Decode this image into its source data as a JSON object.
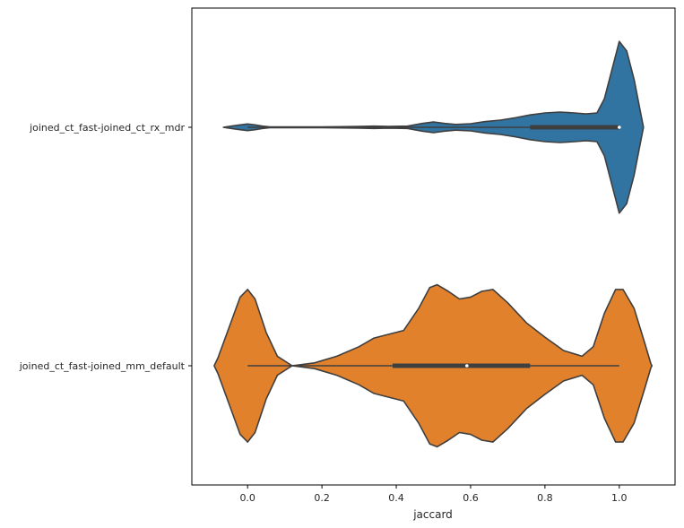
{
  "chart_data": {
    "type": "violin",
    "orientation": "horizontal",
    "xlabel": "jaccard",
    "ylabel": "",
    "title": "",
    "xlim": [
      -0.15,
      1.15
    ],
    "xticks": [
      0.0,
      0.2,
      0.4,
      0.6,
      0.8,
      1.0
    ],
    "xtick_labels": [
      "0.0",
      "0.2",
      "0.4",
      "0.6",
      "0.8",
      "1.0"
    ],
    "grid": false,
    "legend": "none",
    "series": [
      {
        "category": "joined_ct_fast-joined_ct_rx_mdr",
        "color": "#3274a1",
        "whisker": [
          0.0,
          1.0
        ],
        "q1": 0.76,
        "median": 1.0,
        "q3": 1.0,
        "density": [
          [
            -0.065,
            0.0
          ],
          [
            -0.04,
            0.015
          ],
          [
            -0.02,
            0.025
          ],
          [
            0.0,
            0.035
          ],
          [
            0.02,
            0.025
          ],
          [
            0.04,
            0.012
          ],
          [
            0.06,
            0.005
          ],
          [
            0.1,
            0.004
          ],
          [
            0.2,
            0.005
          ],
          [
            0.3,
            0.008
          ],
          [
            0.34,
            0.012
          ],
          [
            0.38,
            0.009
          ],
          [
            0.43,
            0.012
          ],
          [
            0.47,
            0.04
          ],
          [
            0.5,
            0.055
          ],
          [
            0.53,
            0.04
          ],
          [
            0.56,
            0.03
          ],
          [
            0.6,
            0.038
          ],
          [
            0.64,
            0.06
          ],
          [
            0.68,
            0.075
          ],
          [
            0.72,
            0.1
          ],
          [
            0.76,
            0.13
          ],
          [
            0.8,
            0.15
          ],
          [
            0.84,
            0.16
          ],
          [
            0.88,
            0.15
          ],
          [
            0.91,
            0.14
          ],
          [
            0.94,
            0.15
          ],
          [
            0.96,
            0.3
          ],
          [
            0.98,
            0.6
          ],
          [
            1.0,
            0.9
          ],
          [
            1.02,
            0.8
          ],
          [
            1.04,
            0.5
          ],
          [
            1.055,
            0.2
          ],
          [
            1.06,
            0.1
          ],
          [
            1.065,
            0.0
          ]
        ]
      },
      {
        "category": "joined_ct_fast-joined_mm_default",
        "color": "#e1812c",
        "whisker": [
          0.0,
          1.0
        ],
        "q1": 0.39,
        "median": 0.59,
        "q3": 0.76,
        "density": [
          [
            -0.09,
            0.0
          ],
          [
            -0.08,
            0.08
          ],
          [
            -0.05,
            0.4
          ],
          [
            -0.02,
            0.72
          ],
          [
            0.0,
            0.8
          ],
          [
            0.02,
            0.7
          ],
          [
            0.05,
            0.35
          ],
          [
            0.08,
            0.1
          ],
          [
            0.12,
            0.0
          ],
          [
            0.18,
            0.03
          ],
          [
            0.24,
            0.1
          ],
          [
            0.3,
            0.2
          ],
          [
            0.34,
            0.29
          ],
          [
            0.38,
            0.33
          ],
          [
            0.42,
            0.37
          ],
          [
            0.46,
            0.6
          ],
          [
            0.49,
            0.82
          ],
          [
            0.51,
            0.85
          ],
          [
            0.54,
            0.78
          ],
          [
            0.57,
            0.7
          ],
          [
            0.6,
            0.72
          ],
          [
            0.63,
            0.78
          ],
          [
            0.66,
            0.8
          ],
          [
            0.7,
            0.66
          ],
          [
            0.75,
            0.45
          ],
          [
            0.8,
            0.3
          ],
          [
            0.85,
            0.16
          ],
          [
            0.9,
            0.1
          ],
          [
            0.93,
            0.2
          ],
          [
            0.96,
            0.55
          ],
          [
            0.99,
            0.8
          ],
          [
            1.01,
            0.8
          ],
          [
            1.04,
            0.6
          ],
          [
            1.07,
            0.22
          ],
          [
            1.085,
            0.02
          ],
          [
            1.088,
            0.0
          ]
        ]
      }
    ]
  }
}
